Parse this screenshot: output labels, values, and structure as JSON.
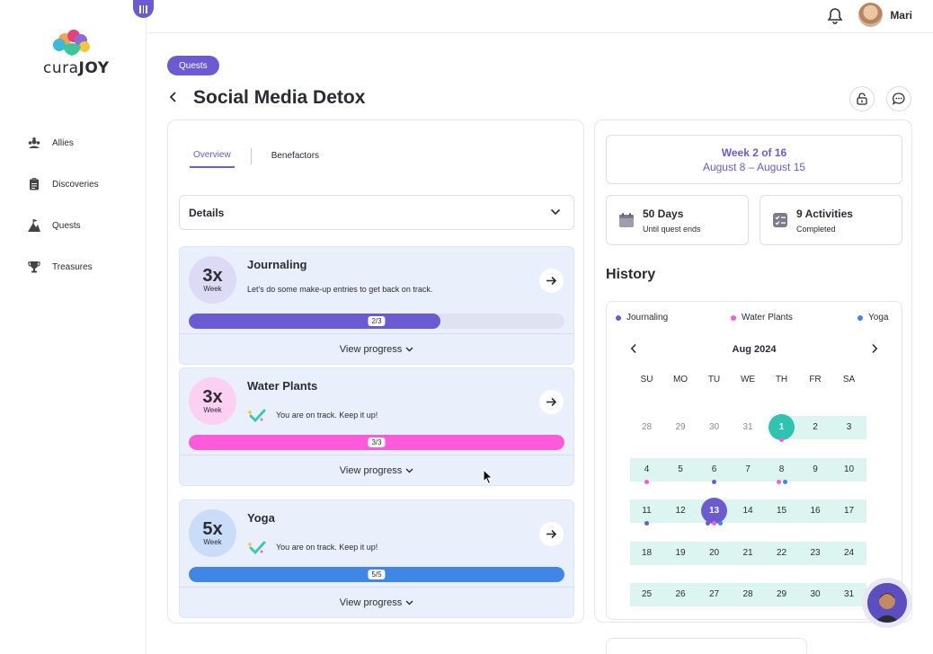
{
  "app": {
    "logo_text_a": "cura",
    "logo_text_b": "JOY",
    "user_name": "Mari"
  },
  "sidebar": {
    "items": [
      {
        "label": "Allies",
        "icon": "allies-icon"
      },
      {
        "label": "Discoveries",
        "icon": "clipboard-icon"
      },
      {
        "label": "Quests",
        "icon": "mountain-flag-icon"
      },
      {
        "label": "Treasures",
        "icon": "trophy-icon"
      }
    ]
  },
  "header": {
    "badge": "Quests",
    "title": "Social Media Detox"
  },
  "tabs": [
    {
      "label": "Overview",
      "active": true
    },
    {
      "label": "Benefactors",
      "active": false
    }
  ],
  "details_label": "Details",
  "activities": [
    {
      "freq": "3x",
      "unit": "Week",
      "title": "Journaling",
      "message": "Let's do some make-up entries to get back on track.",
      "on_track": false,
      "progress_label": "2/3",
      "progress": 0.67,
      "color": "#6b5bd2",
      "circle": "#dcdaf5",
      "footer": "View progress"
    },
    {
      "freq": "3x",
      "unit": "Week",
      "title": "Water Plants",
      "message": "You are on track. Keep it up!",
      "on_track": true,
      "progress_label": "3/3",
      "progress": 1.0,
      "color": "#ff5ad9",
      "circle": "#fbd0f2",
      "footer": "View progress"
    },
    {
      "freq": "5x",
      "unit": "Week",
      "title": "Yoga",
      "message": "You are on track. Keep it up!",
      "on_track": true,
      "progress_label": "5/5",
      "progress": 1.0,
      "color": "#3f86e6",
      "circle": "#c9dcf8",
      "footer": "View progress"
    }
  ],
  "week": {
    "label": "Week 2 of 16",
    "range": "August 8 – August 15"
  },
  "stats": [
    {
      "value": "50 Days",
      "label": "Until quest ends"
    },
    {
      "value": "9 Activities",
      "label": "Completed"
    }
  ],
  "history": {
    "title": "History",
    "legend": [
      {
        "label": "Journaling",
        "color": "#6b5bd2"
      },
      {
        "label": "Water Plants",
        "color": "#ff5ad9"
      },
      {
        "label": "Yoga",
        "color": "#3f86e6"
      }
    ],
    "month": "Aug 2024",
    "weekdays": [
      "SU",
      "MO",
      "TU",
      "WE",
      "TH",
      "FR",
      "SA"
    ],
    "weeks": [
      [
        {
          "d": "28",
          "muted": true
        },
        {
          "d": "29",
          "muted": true
        },
        {
          "d": "30",
          "muted": true
        },
        {
          "d": "31",
          "muted": true
        },
        {
          "d": "1",
          "highlight": "#2ec4b0",
          "dots": [
            "#ff5ad9"
          ]
        },
        {
          "d": "2"
        },
        {
          "d": "3"
        }
      ],
      [
        {
          "d": "4",
          "dots": [
            "#ff5ad9"
          ]
        },
        {
          "d": "5"
        },
        {
          "d": "6",
          "dots": [
            "#6b5bd2"
          ]
        },
        {
          "d": "7"
        },
        {
          "d": "8",
          "dots": [
            "#ff5ad9",
            "#3f86e6"
          ]
        },
        {
          "d": "9"
        },
        {
          "d": "10"
        }
      ],
      [
        {
          "d": "11",
          "dots": [
            "#6b5bd2"
          ]
        },
        {
          "d": "12"
        },
        {
          "d": "13",
          "highlight": "#6b5bd2",
          "dots": [
            "#6b5bd2",
            "#ff5ad9",
            "#3f86e6"
          ]
        },
        {
          "d": "14"
        },
        {
          "d": "15"
        },
        {
          "d": "16"
        },
        {
          "d": "17"
        }
      ],
      [
        {
          "d": "18"
        },
        {
          "d": "19"
        },
        {
          "d": "20"
        },
        {
          "d": "21"
        },
        {
          "d": "22"
        },
        {
          "d": "23"
        },
        {
          "d": "24"
        }
      ],
      [
        {
          "d": "25"
        },
        {
          "d": "26"
        },
        {
          "d": "27"
        },
        {
          "d": "28"
        },
        {
          "d": "29"
        },
        {
          "d": "30"
        },
        {
          "d": "31"
        }
      ]
    ]
  }
}
